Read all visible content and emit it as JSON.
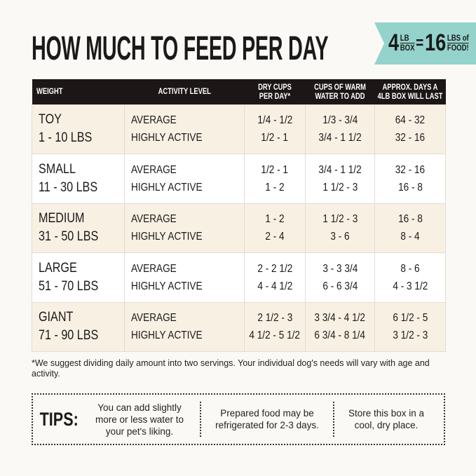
{
  "title": "HOW MUCH TO FEED PER DAY",
  "banner": {
    "num1": "4",
    "top1": "LB",
    "bot1": "BOX",
    "eq": "=",
    "num2": "16",
    "top2": "LBS of",
    "bot2": "FOOD!",
    "color": "#94d3cc"
  },
  "table": {
    "headers": [
      "WEIGHT",
      "ACTIVITY LEVEL",
      "DRY CUPS PER DAY*",
      "CUPS OF WARM WATER TO ADD",
      "APPROX. DAYS A 4LB BOX WILL LAST"
    ],
    "rows": [
      {
        "size": "TOY",
        "range": "1 - 10 LBS",
        "levels": [
          "AVERAGE",
          "HIGHLY ACTIVE"
        ],
        "dry": [
          "1/4 - 1/2",
          "1/2 - 1"
        ],
        "water": [
          "1/3 - 3/4",
          "3/4 - 1 1/2"
        ],
        "days": [
          "64 - 32",
          "32 - 16"
        ]
      },
      {
        "size": "SMALL",
        "range": "11 - 30 LBS",
        "levels": [
          "AVERAGE",
          "HIGHLY ACTIVE"
        ],
        "dry": [
          "1/2 - 1",
          "1 - 2"
        ],
        "water": [
          "3/4 - 1 1/2",
          "1 1/2 - 3"
        ],
        "days": [
          "32 - 16",
          "16 - 8"
        ]
      },
      {
        "size": "MEDIUM",
        "range": "31 - 50 LBS",
        "levels": [
          "AVERAGE",
          "HIGHLY ACTIVE"
        ],
        "dry": [
          "1 - 2",
          "2 - 4"
        ],
        "water": [
          "1 1/2 - 3",
          "3 - 6"
        ],
        "days": [
          "16 - 8",
          "8 - 4"
        ]
      },
      {
        "size": "LARGE",
        "range": "51 - 70 LBS",
        "levels": [
          "AVERAGE",
          "HIGHLY ACTIVE"
        ],
        "dry": [
          "2 - 2 1/2",
          "4 - 4 1/2"
        ],
        "water": [
          "3 - 3 3/4",
          "6 - 6 3/4"
        ],
        "days": [
          "8 - 6",
          "4 - 3 1/2"
        ]
      },
      {
        "size": "GIANT",
        "range": "71 - 90 LBS",
        "levels": [
          "AVERAGE",
          "HIGHLY ACTIVE"
        ],
        "dry": [
          "2 1/2 - 3",
          "4 1/2 - 5 1/2"
        ],
        "water": [
          "3 3/4 - 4 1/2",
          "6 3/4 - 8 1/4"
        ],
        "days": [
          "6 1/2 - 5",
          "3 1/2 - 3"
        ]
      }
    ]
  },
  "note": "*We suggest dividing daily amount into two servings. Your individual dog's needs will vary with age and activity.",
  "tips": {
    "label": "TIPS:",
    "items": [
      "You can add slightly more or less water to your pet's liking.",
      "Prepared food may be refrigerated for 2-3 days.",
      "Store this box in a cool, dry place."
    ]
  }
}
